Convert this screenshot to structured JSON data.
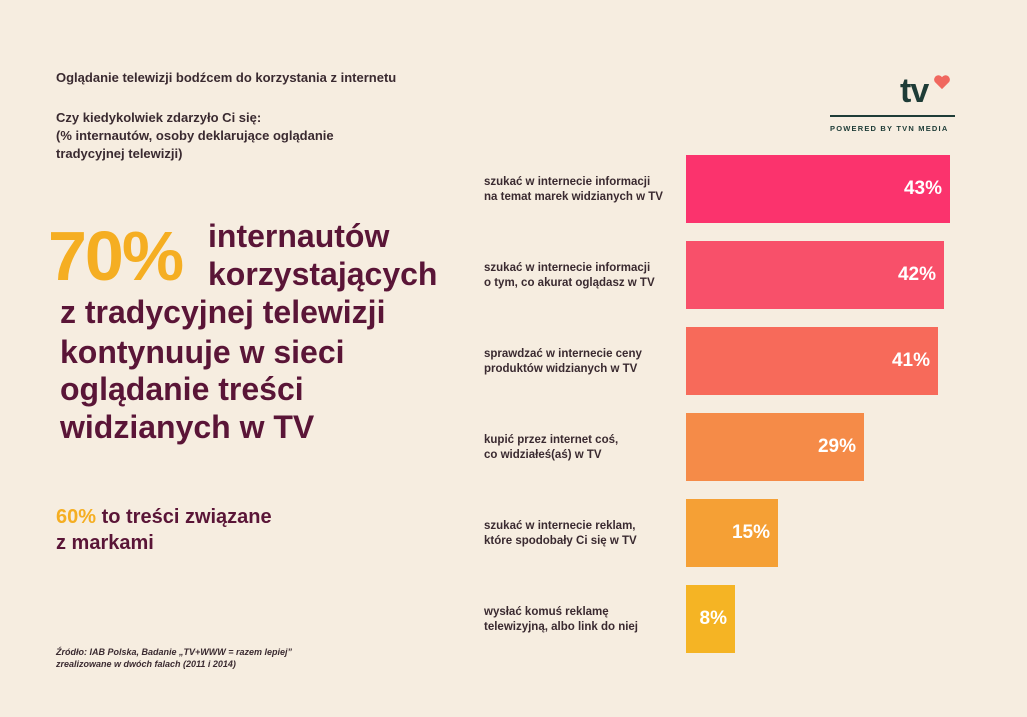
{
  "header": {
    "title": "Oglądanie telewizji bodźcem do korzystania z internetu",
    "question_line1": "Czy kiedykolwiek zdarzyło Ci się:",
    "question_line2": "(% internautów, osoby deklarujące oglądanie",
    "question_line3": "tradycyjnej telewizji)"
  },
  "logo": {
    "text": "tv",
    "subtitle": "POWERED BY TVN MEDIA",
    "heart_color": "#f0685f"
  },
  "headline": {
    "percent": "70%",
    "line1": "internautów",
    "line2": "korzystających",
    "line3": "z tradycyjnej telewizji",
    "line4": "kontynuuje w sieci",
    "line5": "oglądanie treści",
    "line6": "widzianych w TV"
  },
  "substat": {
    "percent": "60%",
    "line1": " to treści związane",
    "line2": "z markami"
  },
  "source": {
    "line1": "Źródło: IAB Polska, Badanie „TV+WWW = razem lepiej”",
    "line2": "zrealizowane w dwóch falach (2011 i 2014)"
  },
  "colors": {
    "accent": "#f5ae22",
    "headline": "#5a1537",
    "background": "#f6ede0"
  },
  "chart_data": {
    "type": "bar",
    "orientation": "horizontal",
    "title": "Czy kiedykolwiek zdarzyło Ci się:",
    "unit": "%",
    "xlim": [
      0,
      43
    ],
    "categories": [
      [
        "szukać w internecie informacji",
        "na temat marek widzianych w TV"
      ],
      [
        "szukać w internecie informacji",
        "o tym, co akurat oglądasz w TV"
      ],
      [
        "sprawdzać w internecie ceny",
        "produktów widzianych w TV"
      ],
      [
        "kupić przez internet coś,",
        "co widziałeś(aś) w TV"
      ],
      [
        "szukać w internecie reklam,",
        "które spodobały Ci się  w TV"
      ],
      [
        "wysłać komuś reklamę",
        "telewizyjną, albo link do niej"
      ]
    ],
    "values": [
      43,
      42,
      41,
      29,
      15,
      8
    ],
    "value_labels": [
      "43%",
      "42%",
      "41%",
      "29%",
      "15%",
      "8%"
    ],
    "bar_colors": [
      "#fb336d",
      "#f8506a",
      "#f76a5a",
      "#f58b48",
      "#f5a035",
      "#f5b424"
    ]
  }
}
